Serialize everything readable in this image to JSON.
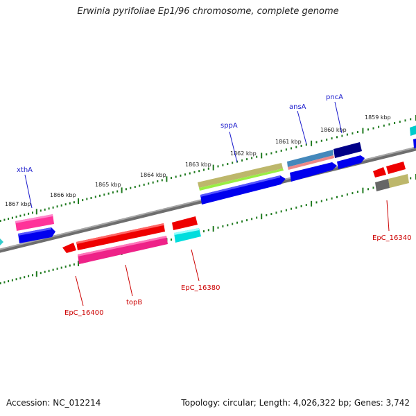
{
  "title": "Erwinia pyrifoliae Ep1/96 chromosome, complete genome",
  "footer": {
    "accession": "Accession: NC_012214",
    "topology": "Topology: circular; Length: 4,026,322 bp; Genes: 3,742"
  },
  "scale_labels": [
    "1867 kbp",
    "1866 kbp",
    "1865 kbp",
    "1864 kbp",
    "1863 kbp",
    "1862 kbp",
    "1861 kbp",
    "1860 kbp",
    "1859 kbp"
  ],
  "gene_labels_top": [
    "xthA",
    "sppA",
    "ansA",
    "pncA"
  ],
  "gene_labels_bottom": [
    "EpC_16400",
    "topB",
    "EpC_16380",
    "EpC_16340"
  ],
  "colors": {
    "backbone": "#808080",
    "label_top": "#1a1acc",
    "label_bottom": "#cc0000",
    "tick": "#1f7a1f"
  }
}
